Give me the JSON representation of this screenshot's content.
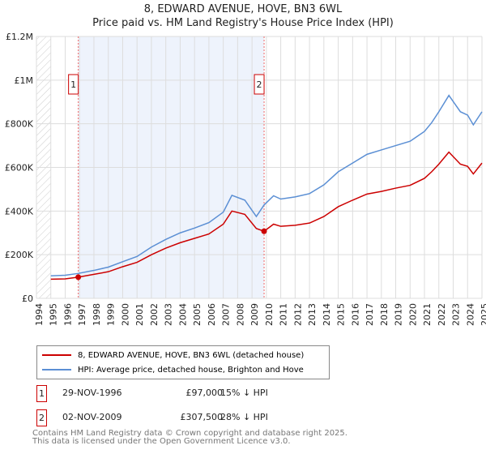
{
  "chart_data": {
    "type": "line",
    "title": "8, EDWARD AVENUE, HOVE, BN3 6WL",
    "subtitle": "Price paid vs. HM Land Registry's House Price Index (HPI)",
    "xlim": [
      1994,
      2025
    ],
    "ylim": [
      0,
      1200000
    ],
    "x_ticks": [
      "1994",
      "1995",
      "1996",
      "1997",
      "1998",
      "1999",
      "2000",
      "2001",
      "2002",
      "2003",
      "2004",
      "2005",
      "2006",
      "2007",
      "2008",
      "2009",
      "2010",
      "2011",
      "2012",
      "2013",
      "2014",
      "2015",
      "2016",
      "2017",
      "2018",
      "2019",
      "2020",
      "2021",
      "2022",
      "2023",
      "2024",
      "2025"
    ],
    "y_ticks": [
      {
        "v": 0,
        "label": "£0"
      },
      {
        "v": 200000,
        "label": "£200K"
      },
      {
        "v": 400000,
        "label": "£400K"
      },
      {
        "v": 600000,
        "label": "£600K"
      },
      {
        "v": 800000,
        "label": "£800K"
      },
      {
        "v": 1000000,
        "label": "£1M"
      },
      {
        "v": 1200000,
        "label": "£1.2M"
      }
    ],
    "grid": true,
    "series": [
      {
        "name": "8, EDWARD AVENUE, HOVE, BN3 6WL (detached house)",
        "color": "#cc0000",
        "points": [
          [
            1995,
            88000
          ],
          [
            1996,
            89000
          ],
          [
            1996.9,
            97000
          ],
          [
            1998,
            110000
          ],
          [
            1999,
            122000
          ],
          [
            2000,
            145000
          ],
          [
            2001,
            165000
          ],
          [
            2002,
            200000
          ],
          [
            2003,
            230000
          ],
          [
            2004,
            255000
          ],
          [
            2005,
            275000
          ],
          [
            2006,
            295000
          ],
          [
            2007,
            340000
          ],
          [
            2007.6,
            400000
          ],
          [
            2008.5,
            385000
          ],
          [
            2009.3,
            320000
          ],
          [
            2009.84,
            307500
          ],
          [
            2010.5,
            340000
          ],
          [
            2011,
            330000
          ],
          [
            2012,
            335000
          ],
          [
            2013,
            345000
          ],
          [
            2014,
            375000
          ],
          [
            2015,
            420000
          ],
          [
            2016,
            450000
          ],
          [
            2017,
            478000
          ],
          [
            2018,
            490000
          ],
          [
            2019,
            505000
          ],
          [
            2020,
            518000
          ],
          [
            2021,
            550000
          ],
          [
            2021.5,
            580000
          ],
          [
            2022,
            615000
          ],
          [
            2022.7,
            670000
          ],
          [
            2023.5,
            615000
          ],
          [
            2024,
            605000
          ],
          [
            2024.4,
            570000
          ],
          [
            2025,
            620000
          ]
        ]
      },
      {
        "name": "HPI: Average price, detached house, Brighton and Hove",
        "color": "#5b8fd4",
        "points": [
          [
            1995,
            103000
          ],
          [
            1996,
            106000
          ],
          [
            1996.9,
            114000
          ],
          [
            1998,
            128000
          ],
          [
            1999,
            143000
          ],
          [
            2000,
            168000
          ],
          [
            2001,
            192000
          ],
          [
            2002,
            235000
          ],
          [
            2003,
            270000
          ],
          [
            2004,
            300000
          ],
          [
            2005,
            322000
          ],
          [
            2006,
            347000
          ],
          [
            2007,
            395000
          ],
          [
            2007.6,
            472000
          ],
          [
            2008.5,
            450000
          ],
          [
            2009.3,
            375000
          ],
          [
            2009.84,
            428000
          ],
          [
            2010.5,
            470000
          ],
          [
            2011,
            455000
          ],
          [
            2012,
            465000
          ],
          [
            2013,
            480000
          ],
          [
            2014,
            520000
          ],
          [
            2015,
            580000
          ],
          [
            2016,
            620000
          ],
          [
            2017,
            660000
          ],
          [
            2018,
            680000
          ],
          [
            2019,
            700000
          ],
          [
            2020,
            720000
          ],
          [
            2021,
            765000
          ],
          [
            2021.5,
            805000
          ],
          [
            2022,
            855000
          ],
          [
            2022.7,
            930000
          ],
          [
            2023.5,
            855000
          ],
          [
            2024,
            840000
          ],
          [
            2024.4,
            795000
          ],
          [
            2025,
            855000
          ]
        ]
      }
    ],
    "sales": [
      {
        "id": "1",
        "x": 1996.91,
        "value": 97000,
        "date": "29-NOV-1996",
        "price": "£97,000",
        "hpi": "15% ↓ HPI"
      },
      {
        "id": "2",
        "x": 2009.84,
        "value": 307500,
        "date": "02-NOV-2009",
        "price": "£307,500",
        "hpi": "28% ↓ HPI"
      }
    ],
    "legend_position": "below"
  },
  "footer": {
    "line1": "Contains HM Land Registry data © Crown copyright and database right 2025.",
    "line2": "This data is licensed under the Open Government Licence v3.0."
  }
}
